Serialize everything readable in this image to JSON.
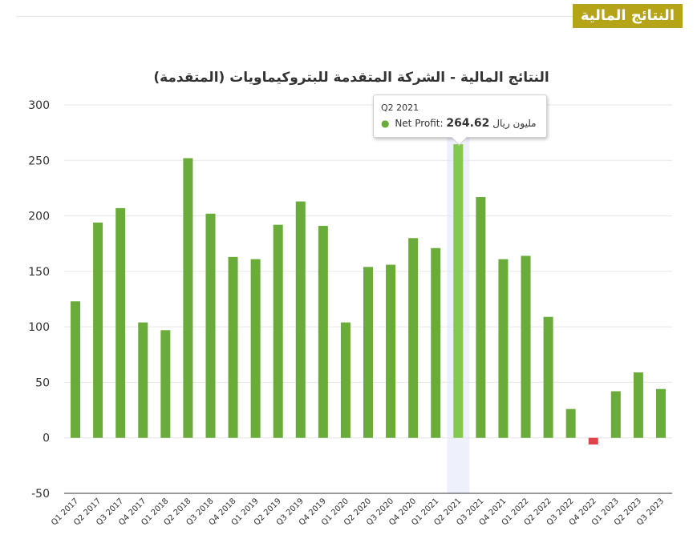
{
  "header": {
    "section_tag": "النتائج المالية"
  },
  "tooltip": {
    "period": "Q2 2021",
    "series_label": "Net Profit:",
    "value": "264.62",
    "unit": "مليون ريال"
  },
  "colors": {
    "positive": "#6aac3a",
    "negative": "#e0434c",
    "highlight": "#83c94f",
    "hover_band": "#eef1fc",
    "gridline": "#e6e6e6",
    "tag": "#b5a417"
  },
  "chart_data": {
    "type": "bar",
    "title": "النتائج المالية - الشركة المتقدمة للبتروكيماويات (المتقدمة)",
    "xlabel": "",
    "ylabel": "",
    "ylim": [
      -50,
      300
    ],
    "yticks": [
      -50,
      0,
      50,
      100,
      150,
      200,
      250,
      300
    ],
    "grid": true,
    "legend": "none",
    "highlighted_category": "Q2 2021",
    "categories": [
      "Q1 2017",
      "Q2 2017",
      "Q3 2017",
      "Q4 2017",
      "Q1 2018",
      "Q2 2018",
      "Q3 2018",
      "Q4 2018",
      "Q1 2019",
      "Q2 2019",
      "Q3 2019",
      "Q4 2019",
      "Q1 2020",
      "Q2 2020",
      "Q3 2020",
      "Q4 2020",
      "Q1 2021",
      "Q2 2021",
      "Q3 2021",
      "Q4 2021",
      "Q1 2022",
      "Q2 2022",
      "Q3 2022",
      "Q4 2022",
      "Q1 2023",
      "Q2 2023",
      "Q3 2023"
    ],
    "series": [
      {
        "values": [
          123,
          194,
          207,
          104,
          97,
          252,
          202,
          163,
          161,
          192,
          213,
          191,
          104,
          154,
          156,
          180,
          171,
          264.62,
          217,
          161,
          164,
          109,
          26,
          -6,
          42,
          59,
          44
        ]
      }
    ]
  }
}
